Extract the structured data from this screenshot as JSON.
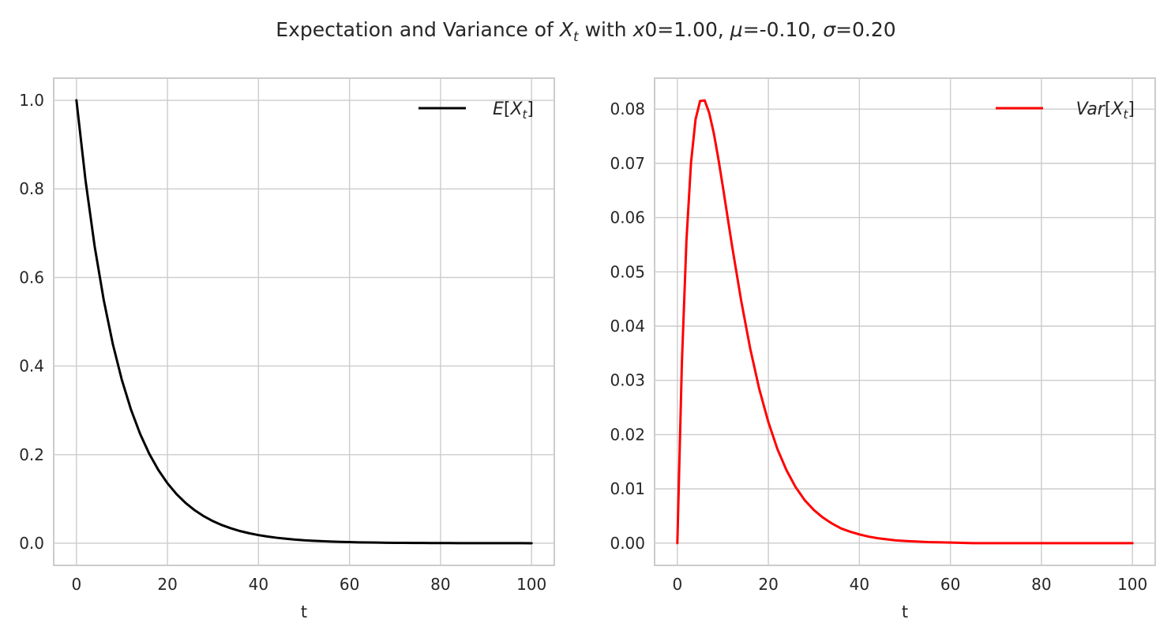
{
  "figure": {
    "suptitle": {
      "prefix": "Expectation and Variance of ",
      "var_main": "X",
      "var_sub": "t",
      "mid": " with ",
      "param1_var": "x",
      "param1_rest": "0=1.00, ",
      "param2_var": "μ",
      "param2_rest": "=-0.10, ",
      "param3_var": "σ",
      "param3_rest": "=0.20"
    }
  },
  "chart_data": [
    {
      "type": "line",
      "xlabel": "t",
      "ylabel": "",
      "xlim": [
        -5,
        105
      ],
      "ylim": [
        -0.05,
        1.05
      ],
      "xticks": [
        0,
        20,
        40,
        60,
        80,
        100
      ],
      "xtick_labels": [
        "0",
        "20",
        "40",
        "60",
        "80",
        "100"
      ],
      "yticks": [
        0.0,
        0.2,
        0.4,
        0.6,
        0.8,
        1.0
      ],
      "ytick_labels": [
        "0.0",
        "0.2",
        "0.4",
        "0.6",
        "0.8",
        "1.0"
      ],
      "grid": true,
      "legend_position": "top-right",
      "series": [
        {
          "name": "E[X_t]",
          "legend_main": "E",
          "legend_open": "[",
          "legend_var": "X",
          "legend_sub": "t",
          "legend_close": "]",
          "color": "#000000",
          "x": [
            0,
            2,
            4,
            6,
            8,
            10,
            12,
            14,
            16,
            18,
            20,
            22,
            24,
            26,
            28,
            30,
            32,
            34,
            36,
            38,
            40,
            42,
            44,
            46,
            48,
            50,
            52,
            54,
            56,
            58,
            60,
            62,
            64,
            66,
            68,
            70,
            72,
            74,
            76,
            78,
            80,
            82,
            84,
            86,
            88,
            90,
            92,
            94,
            96,
            98,
            100
          ],
          "y": [
            1.0,
            0.8187,
            0.6703,
            0.5488,
            0.4493,
            0.3679,
            0.3012,
            0.2466,
            0.2019,
            0.1653,
            0.1353,
            0.1108,
            0.0907,
            0.0743,
            0.0608,
            0.0498,
            0.0408,
            0.0334,
            0.0273,
            0.0224,
            0.0183,
            0.015,
            0.0123,
            0.0101,
            0.0082,
            0.0067,
            0.0055,
            0.0045,
            0.0037,
            0.003,
            0.0025,
            0.002,
            0.0017,
            0.0014,
            0.0011,
            0.0009,
            0.0007,
            0.0006,
            0.0005,
            0.0004,
            0.0003,
            0.0003,
            0.0002,
            0.0002,
            0.0002,
            0.0001,
            0.0001,
            0.0001,
            0.0001,
            0.0001,
            0.0
          ]
        }
      ]
    },
    {
      "type": "line",
      "xlabel": "t",
      "ylabel": "",
      "xlim": [
        -5,
        105
      ],
      "ylim": [
        -0.0041,
        0.0857
      ],
      "xticks": [
        0,
        20,
        40,
        60,
        80,
        100
      ],
      "xtick_labels": [
        "0",
        "20",
        "40",
        "60",
        "80",
        "100"
      ],
      "yticks": [
        0.0,
        0.01,
        0.02,
        0.03,
        0.04,
        0.05,
        0.06,
        0.07,
        0.08
      ],
      "ytick_labels": [
        "0.00",
        "0.01",
        "0.02",
        "0.03",
        "0.04",
        "0.05",
        "0.06",
        "0.07",
        "0.08"
      ],
      "grid": true,
      "legend_position": "top-right",
      "series": [
        {
          "name": "Var[X_t]",
          "legend_main": "Var",
          "legend_open": "[",
          "legend_var": "X",
          "legend_sub": "t",
          "legend_close": "]",
          "color": "#ff0000",
          "x": [
            0,
            1,
            2,
            3,
            4,
            5,
            6,
            7,
            8,
            9,
            10,
            12,
            14,
            16,
            18,
            20,
            22,
            24,
            26,
            28,
            30,
            32,
            34,
            36,
            38,
            40,
            42,
            44,
            46,
            48,
            50,
            55,
            60,
            65,
            70,
            75,
            80,
            85,
            90,
            95,
            100
          ],
          "y": [
            0.0,
            0.0333,
            0.0558,
            0.0701,
            0.0781,
            0.0815,
            0.0816,
            0.0793,
            0.0756,
            0.0709,
            0.0657,
            0.0549,
            0.0448,
            0.0359,
            0.0284,
            0.0223,
            0.0173,
            0.0134,
            0.0103,
            0.0079,
            0.0061,
            0.0047,
            0.0036,
            0.0027,
            0.0021,
            0.0016,
            0.0012,
            0.0009,
            0.0007,
            0.0005,
            0.0004,
            0.0002,
            0.0001,
            0.0,
            0.0,
            0.0,
            0.0,
            0.0,
            0.0,
            0.0,
            0.0
          ]
        }
      ]
    }
  ]
}
